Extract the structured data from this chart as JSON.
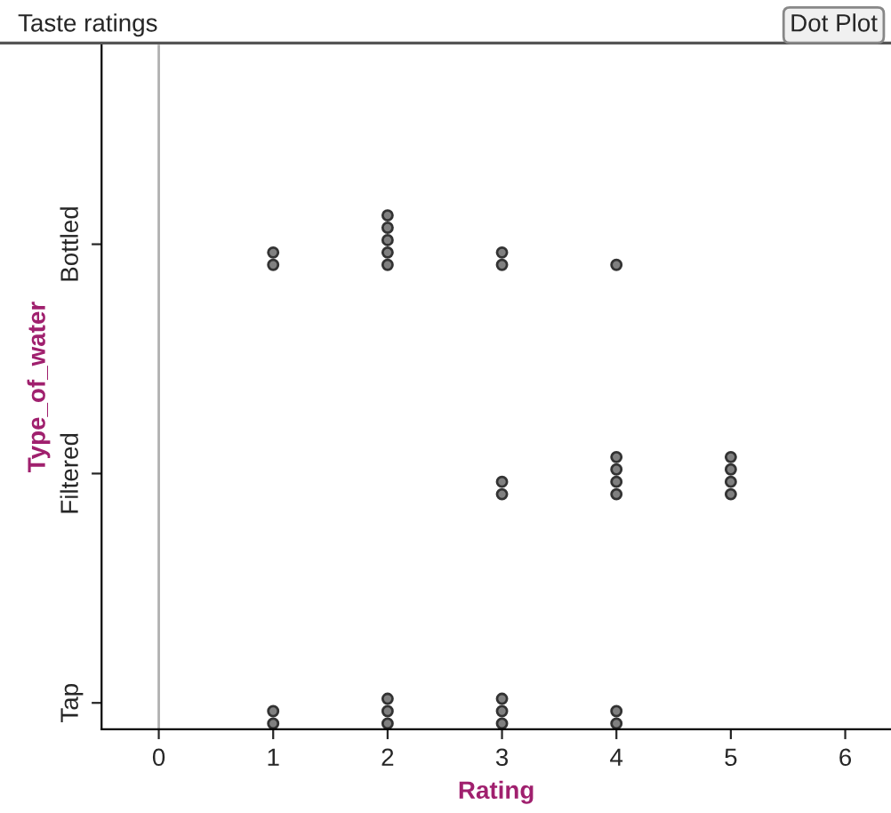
{
  "chart_data": {
    "type": "scatter",
    "orientation": "horizontal",
    "title": "Taste ratings",
    "xlabel": "Rating",
    "ylabel": "Type_of_water",
    "annotations": [
      "Dot Plot"
    ],
    "categories": [
      "Bottled",
      "Filtered",
      "Tap"
    ],
    "series": [
      {
        "color": "#808080",
        "x": [
          "Bottled",
          "Bottled",
          "Bottled",
          "Bottled",
          "Bottled",
          "Bottled",
          "Bottled",
          "Bottled",
          "Bottled",
          "Bottled",
          "Filtered",
          "Filtered",
          "Filtered",
          "Filtered",
          "Filtered",
          "Filtered",
          "Filtered",
          "Filtered",
          "Filtered",
          "Filtered",
          "Tap",
          "Tap",
          "Tap",
          "Tap",
          "Tap",
          "Tap",
          "Tap",
          "Tap",
          "Tap",
          "Tap"
        ],
        "values": [
          1,
          1,
          2,
          2,
          2,
          2,
          2,
          3,
          3,
          4,
          3,
          3,
          4,
          4,
          4,
          4,
          5,
          5,
          5,
          5,
          1,
          1,
          2,
          2,
          2,
          3,
          3,
          3,
          4,
          4
        ]
      }
    ],
    "xlim": [
      -0.5,
      6.4
    ],
    "xticks": [
      0,
      1,
      2,
      3,
      4,
      5,
      6
    ],
    "ref_lines": [
      {
        "axis": "x",
        "value": 0,
        "color": "#b0b0b0"
      }
    ],
    "marker": "circle",
    "grid": false
  }
}
